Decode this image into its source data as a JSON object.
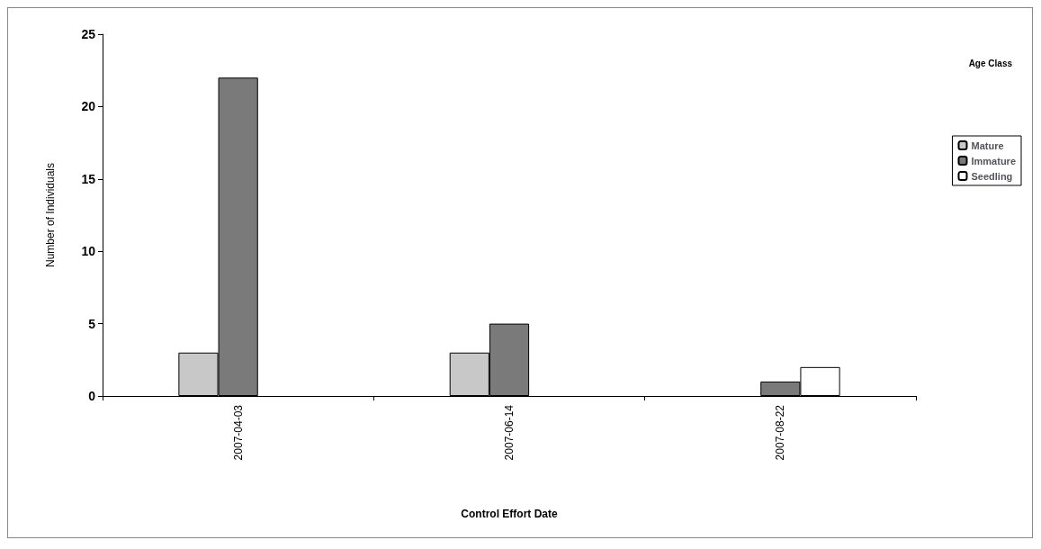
{
  "chart_data": {
    "type": "bar",
    "xlabel": "Control Effort Date",
    "ylabel": "Number of Individuals",
    "legend_title": "Age Class",
    "categories": [
      "2007-04-03",
      "2007-06-14",
      "2007-08-22"
    ],
    "series": [
      {
        "name": "Mature",
        "color": "#c8c8c8",
        "values": [
          3,
          3,
          null
        ]
      },
      {
        "name": "Immature",
        "color": "#7a7a7a",
        "values": [
          22,
          5,
          1
        ]
      },
      {
        "name": "Seedling",
        "color": "#ffffff",
        "values": [
          null,
          null,
          2
        ]
      }
    ],
    "ylim": [
      0,
      25
    ],
    "yticks": [
      0,
      5,
      10,
      15,
      20,
      25
    ],
    "grid": false,
    "legend": "right"
  }
}
